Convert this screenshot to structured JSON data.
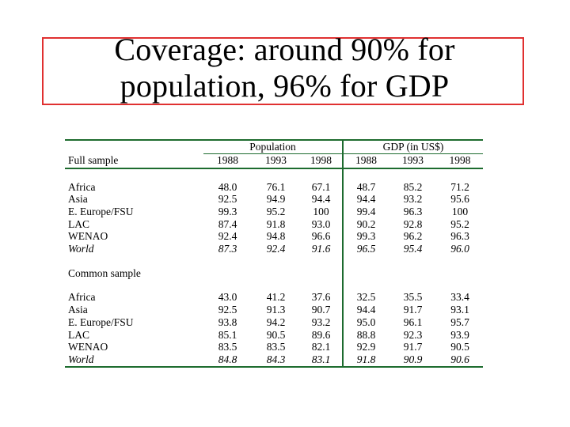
{
  "slide": {
    "title_line1": "Coverage: around 90% for",
    "title_line2": "population, 96% for GDP",
    "border_color": "#e03030",
    "rule_color": "#1d6b2e"
  },
  "table": {
    "group_population": "Population",
    "group_gdp": "GDP (in US$)",
    "full_label": "Full sample",
    "common_label": "Common sample",
    "years": [
      "1988",
      "1993",
      "1998",
      "1988",
      "1993",
      "1998"
    ],
    "full_rows": [
      {
        "region": "Africa",
        "values": [
          "48.0",
          "76.1",
          "67.1",
          "48.7",
          "85.2",
          "71.2"
        ]
      },
      {
        "region": "Asia",
        "values": [
          "92.5",
          "94.9",
          "94.4",
          "94.4",
          "93.2",
          "95.6"
        ]
      },
      {
        "region": "E. Europe/FSU",
        "values": [
          "99.3",
          "95.2",
          "100",
          "99.4",
          "96.3",
          "100"
        ]
      },
      {
        "region": "LAC",
        "values": [
          "87.4",
          "91.8",
          "93.0",
          "90.2",
          "92.8",
          "95.2"
        ]
      },
      {
        "region": "WENAO",
        "values": [
          "92.4",
          "94.8",
          "96.6",
          "99.3",
          "96.2",
          "96.3"
        ]
      },
      {
        "region": "World",
        "values": [
          "87.3",
          "92.4",
          "91.6",
          "96.5",
          "95.4",
          "96.0"
        ]
      }
    ],
    "common_rows": [
      {
        "region": "Africa",
        "values": [
          "43.0",
          "41.2",
          "37.6",
          "32.5",
          "35.5",
          "33.4"
        ]
      },
      {
        "region": "Asia",
        "values": [
          "92.5",
          "91.3",
          "90.7",
          "94.4",
          "91.7",
          "93.1"
        ]
      },
      {
        "region": "E. Europe/FSU",
        "values": [
          "93.8",
          "94.2",
          "93.2",
          "95.0",
          "96.1",
          "95.7"
        ]
      },
      {
        "region": "LAC",
        "values": [
          "85.1",
          "90.5",
          "89.6",
          "88.8",
          "92.3",
          "93.9"
        ]
      },
      {
        "region": "WENAO",
        "values": [
          "83.5",
          "83.5",
          "82.1",
          "92.9",
          "91.7",
          "90.5"
        ]
      },
      {
        "region": "World",
        "values": [
          "84.8",
          "84.3",
          "83.1",
          "91.8",
          "90.9",
          "90.6"
        ]
      }
    ]
  }
}
